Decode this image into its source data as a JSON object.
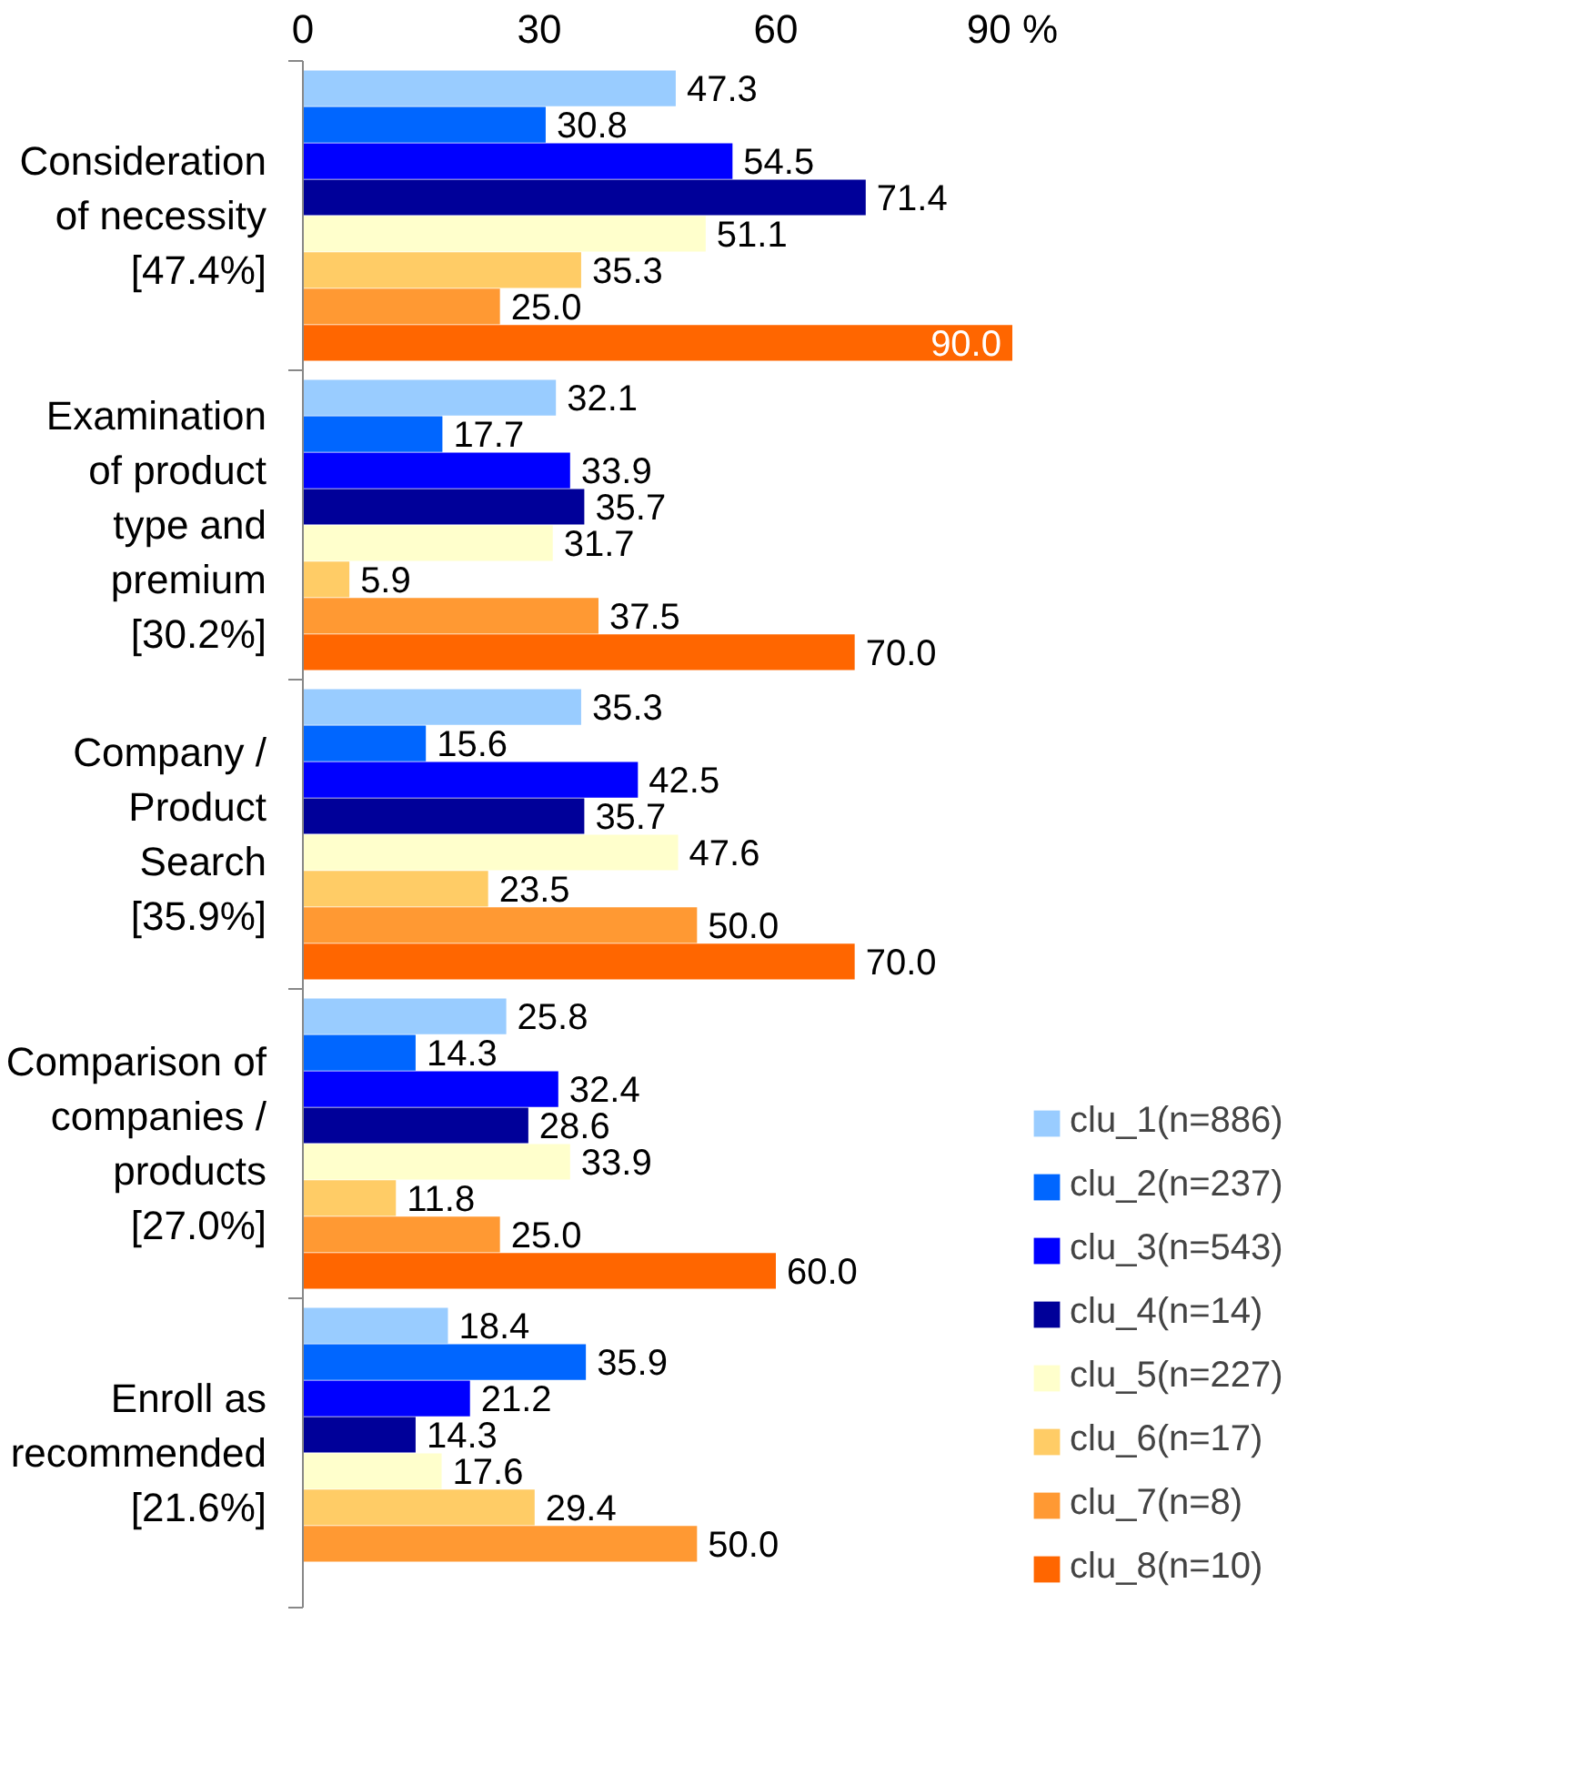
{
  "chart_data": {
    "type": "bar",
    "orientation": "horizontal",
    "categories": [
      "Consideration of necessity [47.4%]",
      "Examination of product type and premium [30.2%]",
      "Company / Product Search [35.9%]",
      "Comparison of companies / products [27.0%]",
      "Enroll as recommended [21.6%]"
    ],
    "series": [
      {
        "name": "clu_1(n=886)",
        "color": "#99ccff",
        "values": [
          47.3,
          32.1,
          35.3,
          25.8,
          18.4
        ]
      },
      {
        "name": "clu_2(n=237)",
        "color": "#0066ff",
        "values": [
          30.8,
          17.7,
          15.6,
          14.3,
          35.9
        ]
      },
      {
        "name": "clu_3(n=543)",
        "color": "#0000ff",
        "values": [
          54.5,
          33.9,
          42.5,
          32.4,
          21.2
        ]
      },
      {
        "name": "clu_4(n=14)",
        "color": "#000099",
        "values": [
          71.4,
          35.7,
          35.7,
          28.6,
          14.3
        ]
      },
      {
        "name": "clu_5(n=227)",
        "color": "#ffffcc",
        "values": [
          51.1,
          31.7,
          47.6,
          33.9,
          17.6
        ]
      },
      {
        "name": "clu_6(n=17)",
        "color": "#ffcc66",
        "values": [
          35.3,
          5.9,
          23.5,
          11.8,
          29.4
        ]
      },
      {
        "name": "clu_7(n=8)",
        "color": "#ff9933",
        "values": [
          25.0,
          37.5,
          50.0,
          25.0,
          50.0
        ],
        "value_labels": [
          "25.0",
          "37.5",
          "50.0",
          "25.0",
          "50.0"
        ]
      },
      {
        "name": "clu_8(n=10)",
        "color": "#ff6600",
        "values": [
          90.0,
          70.0,
          70.0,
          60.0,
          null
        ],
        "value_labels": [
          "90.0",
          "70.0",
          "70.0",
          "60.0",
          null
        ]
      }
    ],
    "xlim": [
      0,
      90
    ],
    "xticks": [
      0,
      30,
      60,
      {
        "value": 90,
        "label": "90 %"
      }
    ],
    "grid": false,
    "legend": "right",
    "data_labels": true
  }
}
